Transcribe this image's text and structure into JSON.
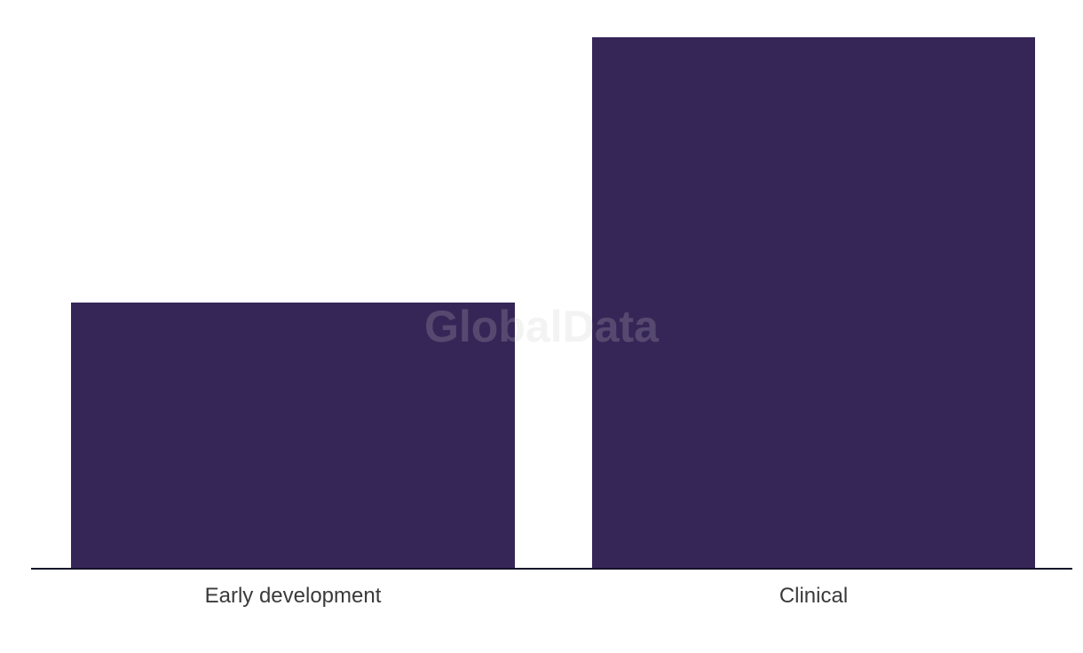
{
  "watermark": {
    "text": "GlobalData"
  },
  "colors": {
    "background": "#ffffff",
    "bar": "#362657",
    "axis": "#15122b",
    "label": "#3a3a3a",
    "watermark": "rgba(200, 200, 206, 0.22)"
  },
  "chart_data": {
    "type": "bar",
    "categories": [
      "Early development",
      "Clinical"
    ],
    "values": [
      50,
      100
    ],
    "title": "",
    "xlabel": "",
    "ylabel": "",
    "ylim": [
      0,
      105
    ],
    "grid": false,
    "legend": false,
    "bar_color": "#362657",
    "axis_style": "x-axis baseline only; no y-axis, ticks or value labels shown",
    "watermark": "GlobalData"
  }
}
